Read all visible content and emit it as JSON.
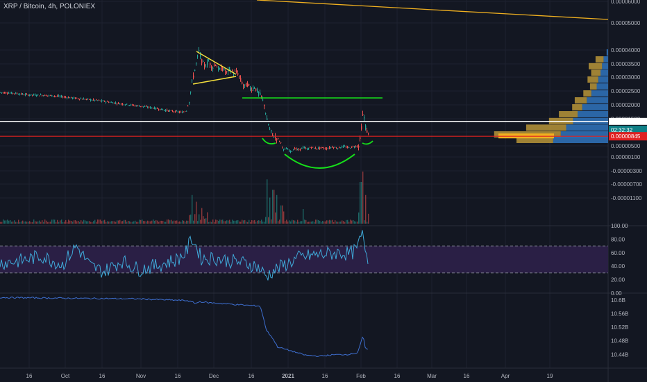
{
  "header": {
    "symbol_title": "XRP / Bitcoin, 4h, POLONIEX"
  },
  "colors": {
    "background": "#131722",
    "grid": "#1e2230",
    "axis_text": "#b2b5be",
    "up": "#26a69a",
    "down": "#ef5350",
    "white_line": "#ffffff",
    "red_line": "#e02020",
    "green": "#16e01a",
    "yellow": "#f5e03c",
    "orange": "#f0b020",
    "rsi_line": "#3fa9d8",
    "rsi_band": "#2a1f45",
    "obv_line": "#3e6fd0",
    "vp_blue": "#2f6fb5",
    "vp_gold": "#b89538",
    "label_teal": "#0f7f86",
    "label_red": "#e02020"
  },
  "chart_data": [
    {
      "type": "candlestick",
      "panel": "price",
      "title": "XRP / Bitcoin, 4h, POLONIEX",
      "ylim": [
        -1.3e-05,
        6e-05
      ],
      "y_ticks": [
        "0.00006000",
        "0.00005000",
        "0.00004000",
        "0.00003500",
        "0.00003000",
        "0.00002500",
        "0.00002000",
        "0.00001500",
        "0.00001000",
        "0.00000500",
        "0.00000100",
        "-0.00000300",
        "-0.00000700",
        "-0.00001100"
      ],
      "x_ticks": [
        "16",
        "Oct",
        "16",
        "Nov",
        "16",
        "Dec",
        "16",
        "2021",
        "16",
        "Feb",
        "16",
        "Mar",
        "16",
        "Apr",
        "19"
      ],
      "close_path": [
        [
          0,
          24.5
        ],
        [
          20,
          24.2
        ],
        [
          40,
          23.6
        ],
        [
          60,
          23.5
        ],
        [
          80,
          23.2
        ],
        [
          100,
          22.6
        ],
        [
          120,
          22.1
        ],
        [
          140,
          21.6
        ],
        [
          160,
          20.9
        ],
        [
          180,
          20.2
        ],
        [
          200,
          19.6
        ],
        [
          220,
          18.9
        ],
        [
          240,
          18.0
        ],
        [
          255,
          17.5
        ],
        [
          262,
          17.3
        ],
        [
          268,
          18.0
        ],
        [
          272,
          21.5
        ],
        [
          276,
          28.0
        ],
        [
          281,
          34.0
        ],
        [
          286,
          39.5
        ],
        [
          290,
          36.0
        ],
        [
          295,
          34.0
        ],
        [
          300,
          36.0
        ],
        [
          305,
          33.5
        ],
        [
          310,
          35.0
        ],
        [
          315,
          32.5
        ],
        [
          320,
          33.5
        ],
        [
          325,
          31.5
        ],
        [
          330,
          33.0
        ],
        [
          336,
          31.5
        ],
        [
          341,
          32.0
        ],
        [
          346,
          29.0
        ],
        [
          351,
          26.5
        ],
        [
          356,
          27.5
        ],
        [
          361,
          25.5
        ],
        [
          366,
          26.5
        ],
        [
          371,
          24.5
        ],
        [
          376,
          23.0
        ],
        [
          380,
          20.0
        ],
        [
          384,
          14.5
        ],
        [
          388,
          11.0
        ],
        [
          392,
          9.0
        ],
        [
          396,
          8.0
        ],
        [
          400,
          7.5
        ],
        [
          404,
          6.0
        ],
        [
          408,
          3.5
        ],
        [
          412,
          4.0
        ],
        [
          418,
          3.0
        ],
        [
          424,
          4.0
        ],
        [
          430,
          3.5
        ],
        [
          436,
          4.5
        ],
        [
          442,
          3.8
        ],
        [
          448,
          4.5
        ],
        [
          455,
          4.0
        ],
        [
          462,
          4.3
        ],
        [
          470,
          4.0
        ],
        [
          478,
          4.6
        ],
        [
          486,
          4.2
        ],
        [
          494,
          4.8
        ],
        [
          502,
          4.3
        ],
        [
          510,
          4.8
        ],
        [
          516,
          5.0
        ],
        [
          519,
          8.5
        ],
        [
          521,
          15.0
        ],
        [
          523,
          17.5
        ],
        [
          525,
          13.0
        ],
        [
          527,
          11.0
        ],
        [
          529,
          9.5
        ],
        [
          531,
          9.0
        ]
      ],
      "last_value": "0.00000845",
      "countdown": "02:32:32",
      "horizontal_lines": [
        {
          "name": "resistance",
          "value": 2.25e-05,
          "color": "#16e01a"
        },
        {
          "name": "white-support",
          "value": 1.4e-05,
          "color": "#ffffff"
        },
        {
          "name": "red-level",
          "value": 8.45e-06,
          "color": "#e02020"
        }
      ],
      "annotations": [
        {
          "name": "long-trend-line",
          "type": "line",
          "color": "#f0b020"
        },
        {
          "name": "pennant",
          "type": "triangle",
          "color": "#f5e03c"
        },
        {
          "name": "cup",
          "type": "arc",
          "color": "#16e01a"
        },
        {
          "name": "handle-left",
          "type": "arc",
          "color": "#16e01a"
        },
        {
          "name": "handle-right",
          "type": "arc",
          "color": "#16e01a"
        }
      ],
      "volume_profile": [
        {
          "price": 3.9e-05,
          "blue": 0.02,
          "gold": 0.0
        },
        {
          "price": 3.65e-05,
          "blue": 0.06,
          "gold": 0.12
        },
        {
          "price": 3.4e-05,
          "blue": 0.08,
          "gold": 0.2
        },
        {
          "price": 3.15e-05,
          "blue": 0.1,
          "gold": 0.14
        },
        {
          "price": 2.9e-05,
          "blue": 0.13,
          "gold": 0.16
        },
        {
          "price": 2.65e-05,
          "blue": 0.15,
          "gold": 0.1
        },
        {
          "price": 2.4e-05,
          "blue": 0.22,
          "gold": 0.12
        },
        {
          "price": 2.15e-05,
          "blue": 0.28,
          "gold": 0.18
        },
        {
          "price": 1.9e-05,
          "blue": 0.34,
          "gold": 0.15
        },
        {
          "price": 1.65e-05,
          "blue": 0.4,
          "gold": 0.28
        },
        {
          "price": 1.4e-05,
          "blue": 0.46,
          "gold": 0.36
        },
        {
          "price": 1.15e-05,
          "blue": 0.55,
          "gold": 0.6
        },
        {
          "price": 9e-06,
          "blue": 0.62,
          "gold": 1.0
        },
        {
          "price": 7e-06,
          "blue": 0.72,
          "gold": 0.55
        }
      ]
    },
    {
      "type": "line",
      "panel": "rsi",
      "ylim": [
        0,
        100
      ],
      "y_ticks": [
        "100.00",
        "80.00",
        "60.00",
        "40.00",
        "20.00",
        "0.00"
      ],
      "band": [
        30,
        70
      ],
      "upper_band": 70,
      "lower_band": 30,
      "value_path": [
        [
          0,
          45
        ],
        [
          30,
          48
        ],
        [
          60,
          55
        ],
        [
          90,
          42
        ],
        [
          110,
          70
        ],
        [
          130,
          40
        ],
        [
          150,
          32
        ],
        [
          175,
          48
        ],
        [
          200,
          35
        ],
        [
          230,
          42
        ],
        [
          255,
          50
        ],
        [
          268,
          60
        ],
        [
          276,
          82
        ],
        [
          282,
          70
        ],
        [
          290,
          52
        ],
        [
          310,
          52
        ],
        [
          330,
          48
        ],
        [
          350,
          45
        ],
        [
          370,
          40
        ],
        [
          384,
          25
        ],
        [
          392,
          32
        ],
        [
          410,
          42
        ],
        [
          430,
          52
        ],
        [
          450,
          56
        ],
        [
          470,
          58
        ],
        [
          490,
          60
        ],
        [
          505,
          58
        ],
        [
          515,
          66
        ],
        [
          521,
          88
        ],
        [
          525,
          76
        ],
        [
          529,
          52
        ],
        [
          531,
          46
        ]
      ]
    },
    {
      "type": "line",
      "panel": "obv",
      "ylim": [
        10.4,
        10.62
      ],
      "y_ticks": [
        "10.6B",
        "10.56B",
        "10.52B",
        "10.48B",
        "10.44B"
      ],
      "value_path": [
        [
          0,
          10.607
        ],
        [
          100,
          10.605
        ],
        [
          200,
          10.603
        ],
        [
          270,
          10.598
        ],
        [
          282,
          10.59
        ],
        [
          288,
          10.595
        ],
        [
          300,
          10.592
        ],
        [
          330,
          10.588
        ],
        [
          350,
          10.585
        ],
        [
          375,
          10.582
        ],
        [
          384,
          10.51
        ],
        [
          392,
          10.49
        ],
        [
          400,
          10.462
        ],
        [
          420,
          10.45
        ],
        [
          440,
          10.438
        ],
        [
          460,
          10.435
        ],
        [
          480,
          10.439
        ],
        [
          500,
          10.44
        ],
        [
          515,
          10.445
        ],
        [
          519,
          10.47
        ],
        [
          523,
          10.495
        ],
        [
          526,
          10.46
        ],
        [
          531,
          10.452
        ]
      ]
    },
    {
      "type": "bar",
      "panel": "volume",
      "spikes": [
        [
          276,
          0.55
        ],
        [
          282,
          0.42
        ],
        [
          290,
          0.3
        ],
        [
          384,
          0.85
        ],
        [
          388,
          0.5
        ],
        [
          393,
          0.65
        ],
        [
          398,
          0.55
        ],
        [
          405,
          0.35
        ],
        [
          436,
          0.28
        ],
        [
          519,
          0.8
        ],
        [
          522,
          1.0
        ],
        [
          526,
          0.55
        ]
      ]
    }
  ]
}
